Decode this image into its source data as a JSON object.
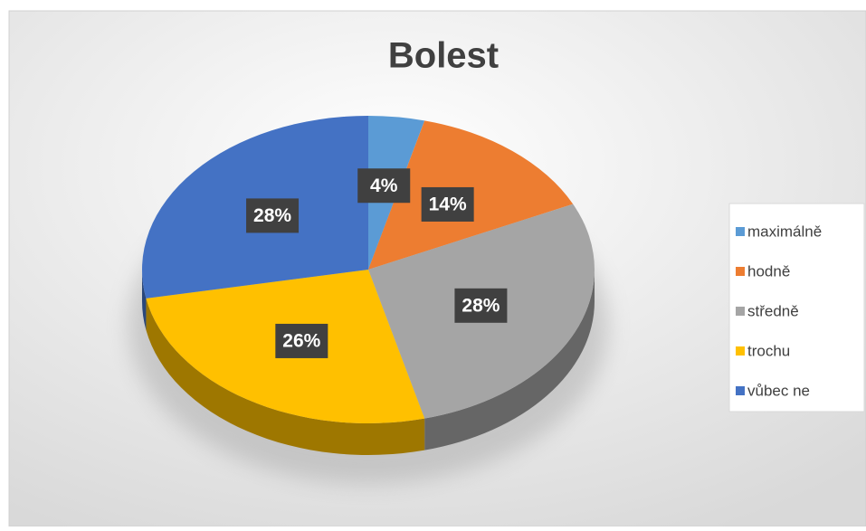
{
  "chart_data": {
    "type": "pie",
    "title": "Bolest",
    "categories": [
      "maximálně",
      "hodně",
      "středně",
      "trochu",
      "vůbec ne"
    ],
    "values": [
      4,
      14,
      28,
      26,
      28
    ],
    "value_labels": [
      "4%",
      "14%",
      "28%",
      "26%",
      "28%"
    ],
    "colors": [
      "#5b9bd5",
      "#ed7d31",
      "#a5a5a5",
      "#ffc000",
      "#4472c4"
    ],
    "legend": "right"
  }
}
